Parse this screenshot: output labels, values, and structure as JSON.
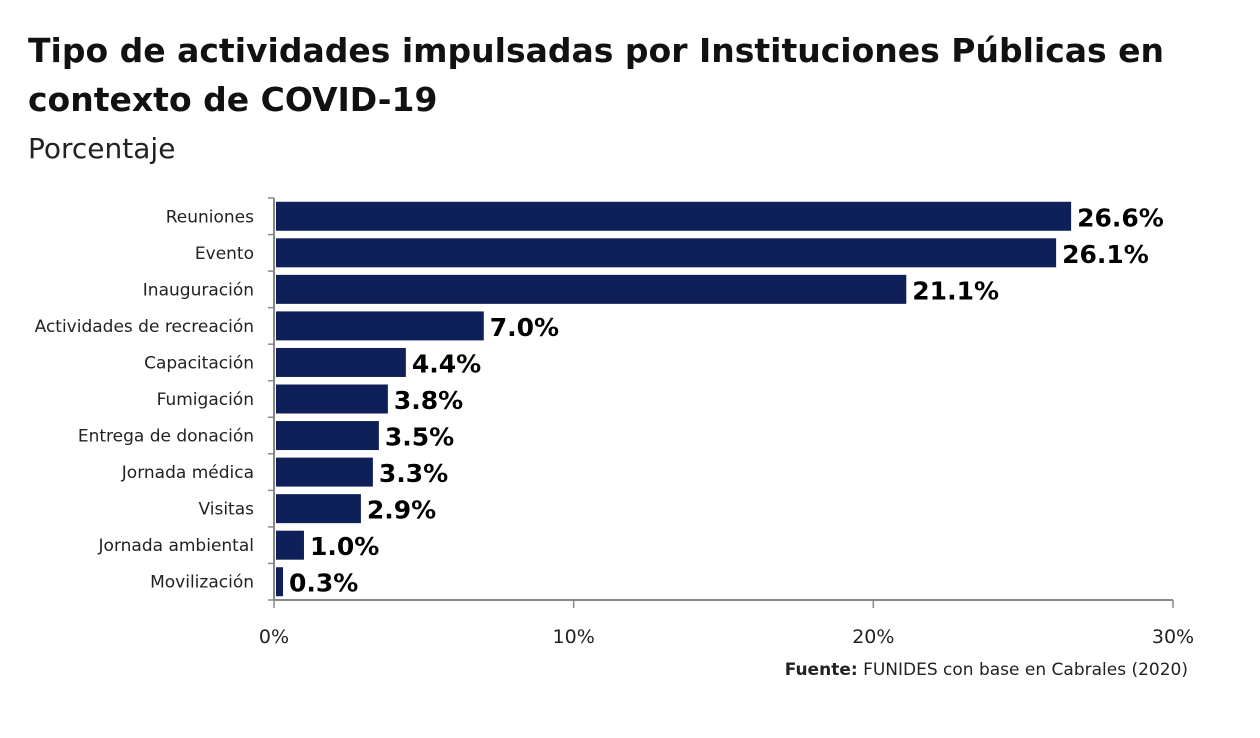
{
  "title": "Tipo de actividades impulsadas por Instituciones Públicas en contexto de COVID-19",
  "subtitle": "Porcentaje",
  "source": {
    "label": "Fuente:",
    "text": "FUNIDES con base en Cabrales (2020)"
  },
  "colors": {
    "bar": "#0f1f57",
    "axis": "#888888"
  },
  "chart_data": {
    "type": "bar",
    "orientation": "horizontal",
    "categories": [
      "Reuniones",
      "Evento",
      "Inauguración",
      "Actividades de recreación",
      "Capacitación",
      "Fumigación",
      "Entrega de donación",
      "Jornada médica",
      "Visitas",
      "Jornada ambiental",
      "Movilización"
    ],
    "values": [
      26.6,
      26.1,
      21.1,
      7.0,
      4.4,
      3.8,
      3.5,
      3.3,
      2.9,
      1.0,
      0.3
    ],
    "value_labels": [
      "26.6%",
      "26.1%",
      "21.1%",
      "7.0%",
      "4.4%",
      "3.8%",
      "3.5%",
      "3.3%",
      "2.9%",
      "1.0%",
      "0.3%"
    ],
    "xlim": [
      0,
      30
    ],
    "xticks": [
      0,
      10,
      20,
      30
    ],
    "xtick_labels": [
      "0%",
      "10%",
      "20%",
      "30%"
    ],
    "grid": false,
    "legend": "none"
  }
}
